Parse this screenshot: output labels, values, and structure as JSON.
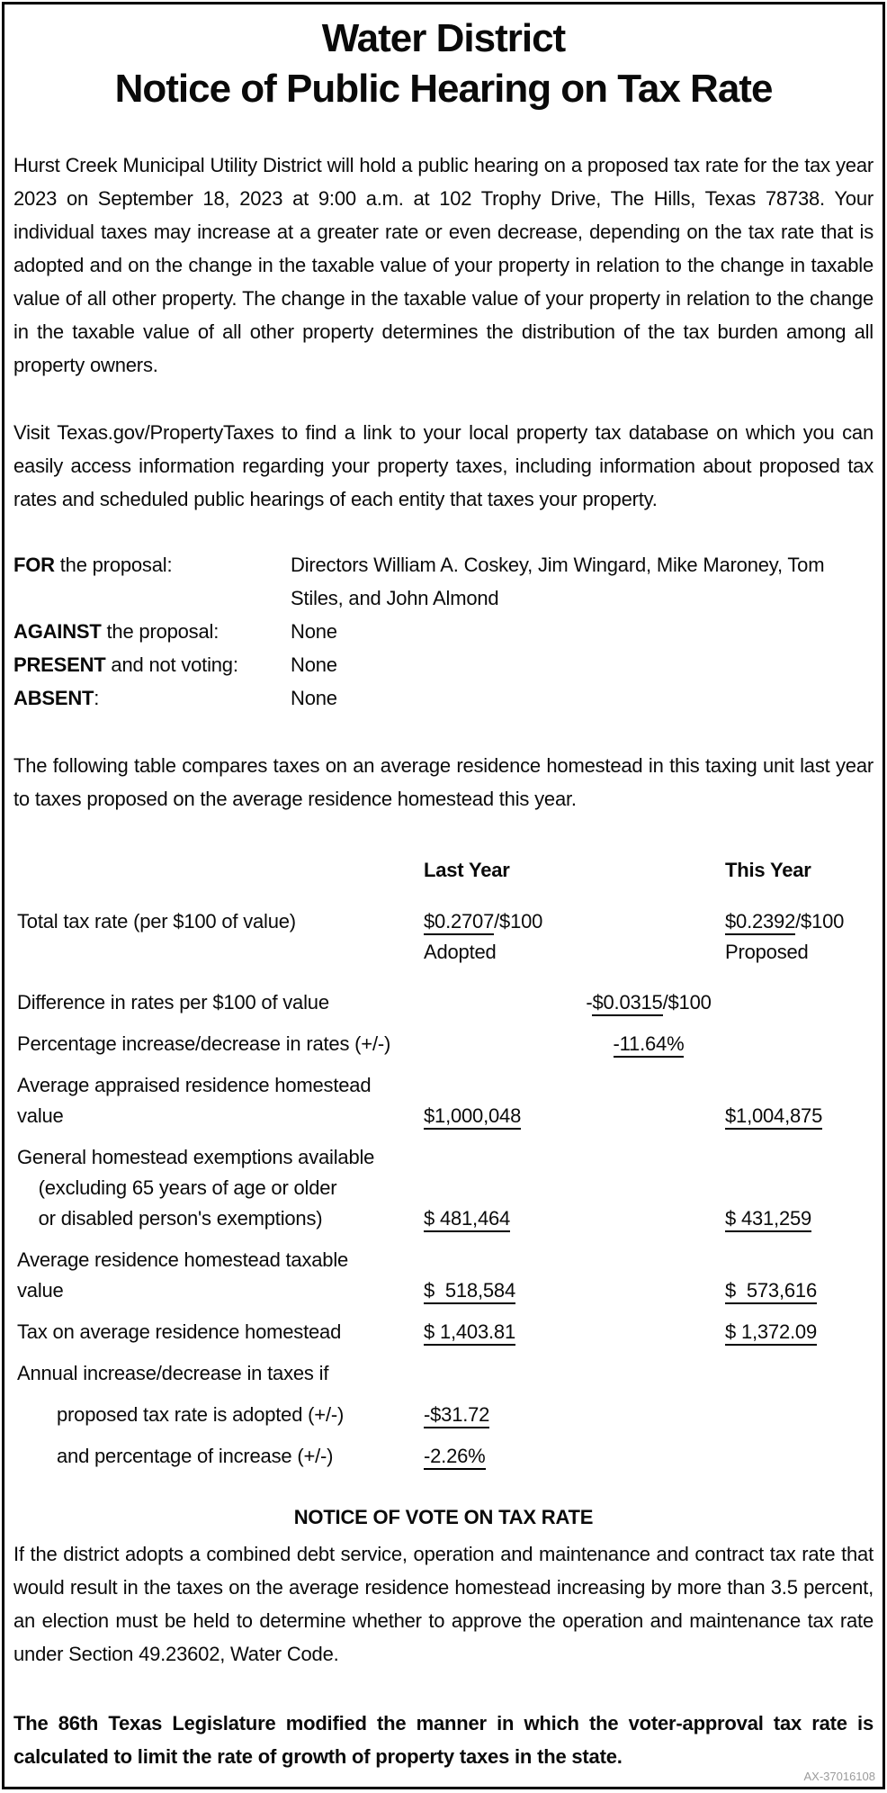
{
  "document": {
    "title_line1": "Water District",
    "title_line2": "Notice of Public Hearing on Tax Rate",
    "intro_paragraph": "Hurst Creek Municipal Utility District will hold a public hearing on a proposed tax rate for the tax year 2023 on September 18, 2023 at 9:00 a.m. at 102 Trophy Drive, The Hills, Texas 78738. Your individual taxes may increase at a greater rate or even decrease, depending on the tax rate that is adopted and on the change in the taxable value of your property in relation to the change in taxable value of all other property. The change in the taxable value of your property in relation to the change in the taxable value of all other property determines the distribution of the tax burden among all property owners.",
    "database_paragraph": "Visit Texas.gov/PropertyTaxes to find a link to your local property tax database on which you can easily access information regarding your property taxes, including information about proposed tax rates and scheduled public hearings of each entity that taxes your property.",
    "vote_record": {
      "rows": [
        {
          "term": "FOR",
          "rest": " the proposal:",
          "value": "Directors William A. Coskey, Jim Wingard, Mike Maroney, Tom Stiles, and John Almond"
        },
        {
          "term": "AGAINST",
          "rest": " the proposal:",
          "value": "None"
        },
        {
          "term": "PRESENT",
          "rest": " and not voting:",
          "value": "None"
        },
        {
          "term": "ABSENT",
          "rest": ":",
          "value": "None"
        }
      ]
    },
    "table_intro": "The following table compares taxes on an average residence homestead in this taxing unit last year to taxes proposed on the average residence homestead this year.",
    "comparison_table": {
      "col1_header": "Last Year",
      "col2_header": "This Year",
      "rows": [
        {
          "label": "Total tax rate (per $100 of value)",
          "col1": {
            "underline": "$0.2707",
            "post": "/$100",
            "below": "Adopted"
          },
          "col2": {
            "underline": "$0.2392",
            "post": "/$100",
            "below": "Proposed"
          }
        },
        {
          "label": "Difference in rates per $100 of value",
          "center": {
            "pre": "-",
            "underline": "$0.0315",
            "post": "/$100"
          }
        },
        {
          "label": "Percentage increase/decrease in rates (+/-)",
          "center": {
            "pre": "",
            "underline": "-11.64%",
            "post": ""
          }
        },
        {
          "label": "Average appraised residence homestead\nvalue",
          "col1": {
            "underline": "$1,000,048"
          },
          "col2": {
            "underline": "$1,004,875"
          }
        },
        {
          "label": "General homestead exemptions available\n    (excluding 65 years of age or older\n    or disabled person's exemptions)",
          "col1": {
            "underline": "$ 481,464"
          },
          "col2": {
            "underline": "$ 431,259"
          }
        },
        {
          "label": "Average residence homestead taxable\nvalue",
          "col1": {
            "underline": "$  518,584"
          },
          "col2": {
            "underline": "$  573,616"
          }
        },
        {
          "label": "Tax on average residence homestead",
          "col1": {
            "underline": "$ 1,403.81"
          },
          "col2": {
            "underline": "$ 1,372.09"
          }
        },
        {
          "label": "Annual increase/decrease in taxes if"
        },
        {
          "label": "proposed tax rate is adopted (+/-)",
          "col1": {
            "underline": "-$31.72"
          }
        },
        {
          "label": "and percentage of increase (+/-)",
          "col1": {
            "underline": "-2.26%"
          }
        }
      ]
    },
    "vote_notice_heading": "NOTICE OF VOTE ON TAX RATE",
    "vote_notice_paragraph": "If the district adopts a combined debt service, operation and maintenance and contract tax rate that would result in the taxes on the average residence homestead increasing by more than 3.5 percent, an election must be held to determine whether to approve the operation and maintenance tax rate under Section 49.23602, Water Code.",
    "legislature_paragraph": "The 86th Texas Legislature modified the manner in which the voter-approval tax rate is calculated to limit the rate of growth of property taxes in the state.",
    "notice_id": "AX-37016108"
  }
}
